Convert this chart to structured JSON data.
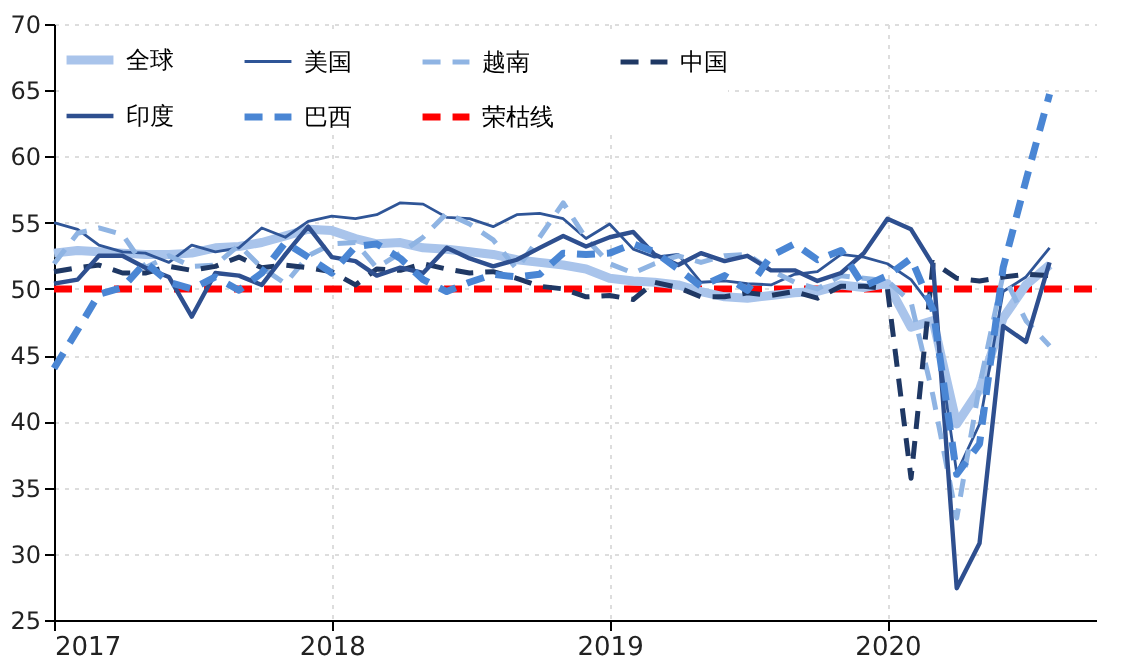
{
  "chart_data": {
    "type": "line",
    "x": [
      "2017-01",
      "2017-02",
      "2017-03",
      "2017-04",
      "2017-05",
      "2017-06",
      "2017-07",
      "2017-08",
      "2017-09",
      "2017-10",
      "2017-11",
      "2017-12",
      "2018-01",
      "2018-02",
      "2018-03",
      "2018-04",
      "2018-05",
      "2018-06",
      "2018-07",
      "2018-08",
      "2018-09",
      "2018-10",
      "2018-11",
      "2018-12",
      "2019-01",
      "2019-02",
      "2019-03",
      "2019-04",
      "2019-05",
      "2019-06",
      "2019-07",
      "2019-08",
      "2019-09",
      "2019-10",
      "2019-11",
      "2019-12",
      "2020-01",
      "2020-02",
      "2020-03",
      "2020-04",
      "2020-05",
      "2020-06",
      "2020-07",
      "2020-08"
    ],
    "series": [
      {
        "name": "全球",
        "color": "#a9c4eb",
        "line_style": "solid",
        "values": [
          52.7,
          52.9,
          52.8,
          52.7,
          52.6,
          52.6,
          52.7,
          53.1,
          53.2,
          53.5,
          54,
          54.5,
          54.4,
          53.8,
          53.4,
          53.5,
          53.1,
          53,
          52.8,
          52.6,
          52.2,
          52,
          51.8,
          51.5,
          50.8,
          50.6,
          50.5,
          50.3,
          49.8,
          49.4,
          49.3,
          49.5,
          49.7,
          49.8,
          50.3,
          50.1,
          50.4,
          47.1,
          47.6,
          39.8,
          42.4,
          47.8,
          50.3,
          51.8
        ]
      },
      {
        "name": "美国",
        "color": "#2f5597",
        "line_style": "solid",
        "values": [
          55,
          54.5,
          53.3,
          52.8,
          52.7,
          52,
          53.3,
          52.8,
          53.1,
          54.6,
          53.9,
          55.1,
          55.5,
          55.3,
          55.6,
          56.5,
          56.4,
          55.4,
          55.3,
          54.7,
          55.6,
          55.7,
          55.3,
          53.8,
          54.9,
          53,
          52.4,
          52.6,
          50.5,
          50.6,
          50.4,
          50.3,
          51.1,
          51.3,
          52.6,
          52.4,
          51.9,
          50.7,
          48.5,
          36.1,
          39.8,
          49.8,
          50.9,
          53.1
        ]
      },
      {
        "name": "越南",
        "color": "#8fb4e3",
        "line_style": "dashed",
        "values": [
          51.9,
          54.2,
          54.6,
          54.1,
          51.6,
          52.5,
          51.7,
          51.8,
          53.3,
          51.6,
          50.4,
          52.5,
          53.4,
          53.5,
          51.6,
          52.7,
          53.9,
          55.7,
          54.9,
          53.7,
          51.5,
          53.9,
          56.5,
          53.8,
          51.9,
          51.2,
          51.9,
          52.5,
          52,
          52.5,
          52.6,
          51.4,
          50.5,
          50,
          51,
          50.8,
          50.6,
          49,
          41.9,
          32.7,
          42.7,
          51.1,
          47.6,
          45.7
        ]
      },
      {
        "name": "中国",
        "color": "#1f3864",
        "line_style": "dashed",
        "values": [
          51.3,
          51.6,
          51.8,
          51.2,
          51.2,
          51.7,
          51.4,
          51.7,
          52.4,
          51.6,
          51.8,
          51.6,
          51.3,
          50.3,
          51.5,
          51.4,
          51.9,
          51.5,
          51.2,
          51.3,
          50.8,
          50.2,
          50,
          49.4,
          49.5,
          49.2,
          50.5,
          50.1,
          49.4,
          49.4,
          49.7,
          49.5,
          49.8,
          49.3,
          50.2,
          50.2,
          50,
          35.7,
          52,
          50.8,
          50.6,
          50.9,
          51.1,
          51
        ]
      },
      {
        "name": "印度",
        "color": "#2e4f8f",
        "line_style": "solid",
        "values": [
          50.4,
          50.7,
          52.5,
          52.5,
          51.6,
          50.9,
          47.9,
          51.2,
          51,
          50.3,
          52.6,
          54.7,
          52.4,
          52.1,
          51,
          51.6,
          51.2,
          53.1,
          52.3,
          51.7,
          52.2,
          53.1,
          54,
          53.2,
          53.9,
          54.3,
          52.6,
          51.8,
          52.7,
          52.1,
          52.5,
          51.4,
          51.4,
          50.6,
          51.2,
          52.7,
          55.3,
          54.5,
          51.8,
          27.4,
          30.8,
          47.2,
          46,
          52
        ]
      },
      {
        "name": "巴西",
        "color": "#4a86d4",
        "line_style": "dashed",
        "values": [
          44,
          46.9,
          49.6,
          50.1,
          52,
          50.5,
          50,
          50.9,
          49.9,
          51.2,
          53.5,
          52.4,
          51.2,
          53.2,
          53.4,
          52.3,
          50.7,
          49.8,
          50.5,
          51.1,
          50.9,
          51.1,
          52.7,
          52.6,
          52.7,
          53.4,
          52.8,
          51.5,
          50.2,
          51,
          49.9,
          52.5,
          53.4,
          52.2,
          52.9,
          50.2,
          51,
          52.3,
          48.4,
          36,
          38.3,
          51.6,
          58.2,
          64.7
        ]
      }
    ],
    "ref_lines": [
      {
        "axis": "y",
        "value": 50,
        "label": "荣枯线",
        "color": "#ff0000",
        "line_style": "dashed"
      }
    ],
    "xlim": [
      "2017-01",
      "2020-10"
    ],
    "xticks": [
      "2017",
      "2018",
      "2019",
      "2020"
    ],
    "ylim": [
      25,
      70
    ],
    "yticks": [
      25,
      30,
      35,
      40,
      45,
      50,
      55,
      60,
      65,
      70
    ],
    "grid": true,
    "legend": "top"
  }
}
